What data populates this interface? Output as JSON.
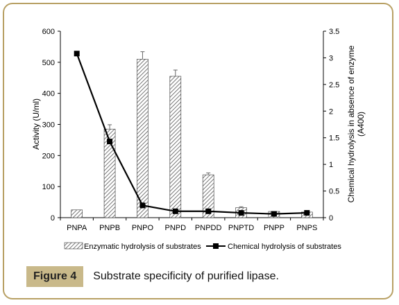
{
  "caption": {
    "label": "Figure 4",
    "text": "Substrate specificity of purified lipase."
  },
  "chart_data": {
    "type": "bar",
    "categories": [
      "PNPA",
      "PNPB",
      "PNPO",
      "PNPD",
      "PNPDD",
      "PNPTD",
      "PNPP",
      "PNPS"
    ],
    "series": [
      {
        "name": "Enzymatic hydrolysis of substrates",
        "type": "bar",
        "axis": "left",
        "values": [
          25,
          285,
          510,
          455,
          138,
          32,
          20,
          18
        ],
        "errors": [
          0,
          14,
          24,
          20,
          6,
          3,
          0,
          3
        ]
      },
      {
        "name": "Chemical hydrolysis of substrates",
        "type": "line",
        "axis": "right",
        "values": [
          3.08,
          1.43,
          0.23,
          0.12,
          0.12,
          0.09,
          0.07,
          0.09
        ]
      }
    ],
    "ylabel": "Activity (U/ml)",
    "y2label_line1": "Chemical hydrolysis in absence of enzyme",
    "y2label_line2": "(A400)",
    "ylim": [
      0,
      600
    ],
    "y2lim": [
      0,
      3.5
    ],
    "yticks": [
      "0",
      "100",
      "200",
      "300",
      "400",
      "500",
      "600"
    ],
    "y2ticks": [
      "0",
      "0.5",
      "1",
      "1.5",
      "2",
      "2.5",
      "3",
      "3.5"
    ],
    "legend_position": "bottom"
  }
}
